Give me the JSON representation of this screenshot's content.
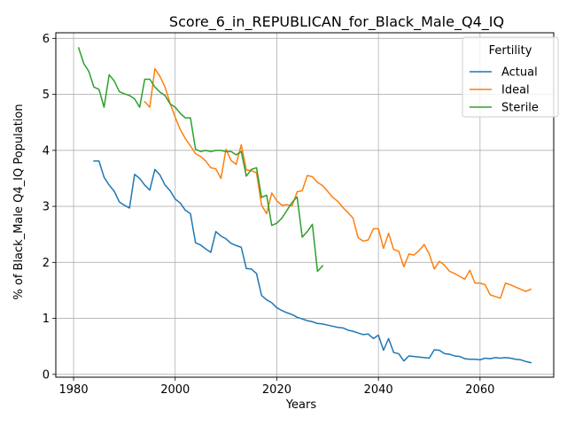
{
  "chart_data": {
    "type": "line",
    "title": "Score_6_in_REPUBLICAN_for_Black_Male_Q4_IQ",
    "xlabel": "Years",
    "ylabel": "% of Black_Male Q4_IQ Population",
    "xlim": [
      1976.5,
      2074.5
    ],
    "ylim": [
      -0.05,
      6.1
    ],
    "xticks": [
      1980,
      2000,
      2020,
      2040,
      2060
    ],
    "yticks": [
      0,
      1,
      2,
      3,
      4,
      5,
      6
    ],
    "grid": true,
    "legend": {
      "title": "Fertility",
      "position": "top-right"
    },
    "series": [
      {
        "name": "Actual",
        "color": "#1f77b4",
        "points": [
          [
            1984,
            3.81
          ],
          [
            1985,
            3.81
          ],
          [
            1986,
            3.52
          ],
          [
            1987,
            3.38
          ],
          [
            1988,
            3.27
          ],
          [
            1989,
            3.08
          ],
          [
            1990,
            3.02
          ],
          [
            1991,
            2.97
          ],
          [
            1992,
            3.57
          ],
          [
            1993,
            3.5
          ],
          [
            1994,
            3.38
          ],
          [
            1995,
            3.29
          ],
          [
            1996,
            3.66
          ],
          [
            1997,
            3.56
          ],
          [
            1998,
            3.38
          ],
          [
            1999,
            3.28
          ],
          [
            2000,
            3.13
          ],
          [
            2001,
            3.06
          ],
          [
            2002,
            2.93
          ],
          [
            2003,
            2.87
          ],
          [
            2004,
            2.35
          ],
          [
            2005,
            2.31
          ],
          [
            2006,
            2.24
          ],
          [
            2007,
            2.18
          ],
          [
            2008,
            2.55
          ],
          [
            2009,
            2.47
          ],
          [
            2010,
            2.42
          ],
          [
            2011,
            2.34
          ],
          [
            2012,
            2.3
          ],
          [
            2013,
            2.27
          ],
          [
            2014,
            1.89
          ],
          [
            2015,
            1.88
          ],
          [
            2016,
            1.8
          ],
          [
            2017,
            1.41
          ],
          [
            2018,
            1.33
          ],
          [
            2019,
            1.28
          ],
          [
            2020,
            1.19
          ],
          [
            2021,
            1.14
          ],
          [
            2022,
            1.1
          ],
          [
            2023,
            1.07
          ],
          [
            2024,
            1.02
          ],
          [
            2025,
            0.99
          ],
          [
            2026,
            0.96
          ],
          [
            2027,
            0.94
          ],
          [
            2028,
            0.91
          ],
          [
            2029,
            0.9
          ],
          [
            2030,
            0.88
          ],
          [
            2031,
            0.86
          ],
          [
            2032,
            0.84
          ],
          [
            2033,
            0.83
          ],
          [
            2034,
            0.79
          ],
          [
            2035,
            0.77
          ],
          [
            2036,
            0.74
          ],
          [
            2037,
            0.71
          ],
          [
            2038,
            0.72
          ],
          [
            2039,
            0.64
          ],
          [
            2040,
            0.7
          ],
          [
            2041,
            0.43
          ],
          [
            2042,
            0.64
          ],
          [
            2043,
            0.39
          ],
          [
            2044,
            0.37
          ],
          [
            2045,
            0.24
          ],
          [
            2046,
            0.33
          ],
          [
            2047,
            0.32
          ],
          [
            2048,
            0.31
          ],
          [
            2049,
            0.3
          ],
          [
            2050,
            0.29
          ],
          [
            2051,
            0.44
          ],
          [
            2052,
            0.43
          ],
          [
            2053,
            0.37
          ],
          [
            2054,
            0.36
          ],
          [
            2055,
            0.33
          ],
          [
            2056,
            0.32
          ],
          [
            2057,
            0.28
          ],
          [
            2058,
            0.27
          ],
          [
            2059,
            0.27
          ],
          [
            2060,
            0.26
          ],
          [
            2061,
            0.29
          ],
          [
            2062,
            0.28
          ],
          [
            2063,
            0.3
          ],
          [
            2064,
            0.29
          ],
          [
            2065,
            0.3
          ],
          [
            2066,
            0.29
          ],
          [
            2067,
            0.27
          ],
          [
            2068,
            0.26
          ],
          [
            2069,
            0.23
          ],
          [
            2070,
            0.21
          ]
        ]
      },
      {
        "name": "Ideal",
        "color": "#ff7f0e",
        "points": [
          [
            1994,
            4.87
          ],
          [
            1995,
            4.77
          ],
          [
            1996,
            5.46
          ],
          [
            1997,
            5.32
          ],
          [
            1998,
            5.13
          ],
          [
            1999,
            4.84
          ],
          [
            2000,
            4.59
          ],
          [
            2001,
            4.37
          ],
          [
            2002,
            4.21
          ],
          [
            2003,
            4.08
          ],
          [
            2004,
            3.94
          ],
          [
            2005,
            3.89
          ],
          [
            2006,
            3.81
          ],
          [
            2007,
            3.69
          ],
          [
            2008,
            3.67
          ],
          [
            2009,
            3.5
          ],
          [
            2010,
            4.02
          ],
          [
            2011,
            3.82
          ],
          [
            2012,
            3.75
          ],
          [
            2013,
            4.1
          ],
          [
            2014,
            3.65
          ],
          [
            2015,
            3.64
          ],
          [
            2016,
            3.6
          ],
          [
            2017,
            3.02
          ],
          [
            2018,
            2.87
          ],
          [
            2019,
            3.24
          ],
          [
            2020,
            3.1
          ],
          [
            2021,
            3.02
          ],
          [
            2022,
            3.03
          ],
          [
            2023,
            3.01
          ],
          [
            2024,
            3.26
          ],
          [
            2025,
            3.28
          ],
          [
            2026,
            3.55
          ],
          [
            2027,
            3.53
          ],
          [
            2028,
            3.43
          ],
          [
            2029,
            3.37
          ],
          [
            2030,
            3.27
          ],
          [
            2031,
            3.16
          ],
          [
            2032,
            3.09
          ],
          [
            2033,
            2.98
          ],
          [
            2034,
            2.89
          ],
          [
            2035,
            2.79
          ],
          [
            2036,
            2.44
          ],
          [
            2037,
            2.38
          ],
          [
            2038,
            2.4
          ],
          [
            2039,
            2.6
          ],
          [
            2040,
            2.6
          ],
          [
            2041,
            2.25
          ],
          [
            2042,
            2.52
          ],
          [
            2043,
            2.23
          ],
          [
            2044,
            2.2
          ],
          [
            2045,
            1.92
          ],
          [
            2046,
            2.15
          ],
          [
            2047,
            2.13
          ],
          [
            2048,
            2.21
          ],
          [
            2049,
            2.32
          ],
          [
            2050,
            2.15
          ],
          [
            2051,
            1.88
          ],
          [
            2052,
            2.02
          ],
          [
            2053,
            1.95
          ],
          [
            2054,
            1.84
          ],
          [
            2055,
            1.8
          ],
          [
            2056,
            1.75
          ],
          [
            2057,
            1.7
          ],
          [
            2058,
            1.86
          ],
          [
            2059,
            1.63
          ],
          [
            2060,
            1.63
          ],
          [
            2061,
            1.6
          ],
          [
            2062,
            1.42
          ],
          [
            2063,
            1.39
          ],
          [
            2064,
            1.36
          ],
          [
            2065,
            1.63
          ],
          [
            2066,
            1.6
          ],
          [
            2067,
            1.56
          ],
          [
            2068,
            1.52
          ],
          [
            2069,
            1.48
          ],
          [
            2070,
            1.52
          ]
        ]
      },
      {
        "name": "Sterile",
        "color": "#2ca02c",
        "points": [
          [
            1981,
            5.83
          ],
          [
            1982,
            5.55
          ],
          [
            1983,
            5.41
          ],
          [
            1984,
            5.13
          ],
          [
            1985,
            5.09
          ],
          [
            1986,
            4.77
          ],
          [
            1987,
            5.35
          ],
          [
            1988,
            5.24
          ],
          [
            1989,
            5.05
          ],
          [
            1990,
            5.01
          ],
          [
            1991,
            4.98
          ],
          [
            1992,
            4.92
          ],
          [
            1993,
            4.77
          ],
          [
            1994,
            5.27
          ],
          [
            1995,
            5.27
          ],
          [
            1996,
            5.13
          ],
          [
            1997,
            5.04
          ],
          [
            1998,
            4.98
          ],
          [
            1999,
            4.83
          ],
          [
            2000,
            4.77
          ],
          [
            2001,
            4.66
          ],
          [
            2002,
            4.58
          ],
          [
            2003,
            4.58
          ],
          [
            2004,
            4.02
          ],
          [
            2005,
            3.98
          ],
          [
            2006,
            4.0
          ],
          [
            2007,
            3.98
          ],
          [
            2008,
            4.0
          ],
          [
            2009,
            4.0
          ],
          [
            2010,
            3.98
          ],
          [
            2011,
            3.98
          ],
          [
            2012,
            3.92
          ],
          [
            2013,
            3.98
          ],
          [
            2014,
            3.54
          ],
          [
            2015,
            3.66
          ],
          [
            2016,
            3.69
          ],
          [
            2017,
            3.16
          ],
          [
            2018,
            3.2
          ],
          [
            2019,
            2.66
          ],
          [
            2020,
            2.7
          ],
          [
            2021,
            2.79
          ],
          [
            2022,
            2.93
          ],
          [
            2023,
            3.07
          ],
          [
            2024,
            3.17
          ],
          [
            2025,
            2.45
          ],
          [
            2026,
            2.55
          ],
          [
            2027,
            2.68
          ],
          [
            2028,
            1.84
          ],
          [
            2029,
            1.94
          ]
        ]
      }
    ]
  }
}
